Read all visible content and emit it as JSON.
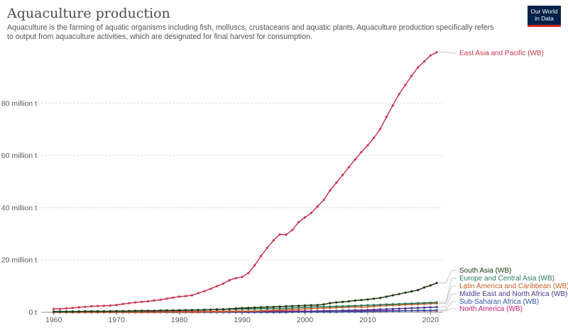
{
  "header": {
    "title": "Aquaculture production",
    "subtitle": "Aquaculture is the farming of aquatic organisms including fish, molluscs, crustaceans and aquatic plants. Aquaculture production specifically refers to output from aquaculture activities, which are designated for final harvest for consumption.",
    "logo_line1": "Our World",
    "logo_line2": "in Data"
  },
  "colors": {
    "east_asia": "#c8384e",
    "south_asia": "#213a12",
    "europe": "#2b7a60",
    "latin_america": "#c95f24",
    "mena": "#4a3a8e",
    "ssa": "#3256a8",
    "north_america": "#c5186f"
  },
  "chart_data": {
    "type": "line",
    "title": "Aquaculture production",
    "xlabel": "",
    "ylabel": "",
    "xlim": [
      1958,
      2022
    ],
    "ylim": [
      0,
      100
    ],
    "y_unit_label": "million t",
    "y_ticks": [
      {
        "value": 0,
        "label": "0 t"
      },
      {
        "value": 20,
        "label": "20 million t"
      },
      {
        "value": 40,
        "label": "40 million t"
      },
      {
        "value": 60,
        "label": "60 million t"
      },
      {
        "value": 80,
        "label": "80 million t"
      }
    ],
    "x_ticks": [
      1960,
      1970,
      1980,
      1990,
      2000,
      2010,
      2020
    ],
    "grid": true,
    "legend": "right, labels at line ends",
    "x": [
      1960,
      1961,
      1962,
      1963,
      1964,
      1965,
      1966,
      1967,
      1968,
      1969,
      1970,
      1971,
      1972,
      1973,
      1974,
      1975,
      1976,
      1977,
      1978,
      1979,
      1980,
      1981,
      1982,
      1983,
      1984,
      1985,
      1986,
      1987,
      1988,
      1989,
      1990,
      1991,
      1992,
      1993,
      1994,
      1995,
      1996,
      1997,
      1998,
      1999,
      2000,
      2001,
      2002,
      2003,
      2004,
      2005,
      2006,
      2007,
      2008,
      2009,
      2010,
      2011,
      2012,
      2013,
      2014,
      2015,
      2016,
      2017,
      2018,
      2019,
      2020,
      2021
    ],
    "series": [
      {
        "name": "East Asia and Pacific (WB)",
        "color_key": "east_asia",
        "values": [
          1.3,
          1.3,
          1.5,
          1.7,
          1.9,
          2.1,
          2.3,
          2.4,
          2.5,
          2.6,
          2.8,
          3.2,
          3.5,
          3.8,
          4.0,
          4.2,
          4.5,
          4.8,
          5.2,
          5.6,
          6.0,
          6.2,
          6.5,
          7.3,
          8.1,
          9.0,
          10.0,
          11.0,
          12.3,
          13.1,
          13.5,
          15.0,
          18.0,
          21.5,
          24.7,
          27.5,
          29.8,
          29.7,
          31.5,
          34.5,
          36.3,
          38.0,
          40.5,
          43.0,
          46.6,
          49.6,
          52.5,
          55.5,
          58.5,
          61.3,
          63.9,
          66.8,
          70.2,
          74.8,
          79.2,
          83.5,
          87.0,
          90.5,
          93.7,
          96.0,
          98.3,
          99.5
        ]
      },
      {
        "name": "South Asia (WB)",
        "color_key": "south_asia",
        "values": [
          0.3,
          0.3,
          0.3,
          0.3,
          0.3,
          0.4,
          0.4,
          0.4,
          0.4,
          0.4,
          0.5,
          0.5,
          0.5,
          0.6,
          0.6,
          0.6,
          0.6,
          0.7,
          0.7,
          0.7,
          0.7,
          0.8,
          0.8,
          0.9,
          0.9,
          1.0,
          1.1,
          1.2,
          1.3,
          1.5,
          1.6,
          1.7,
          1.8,
          1.9,
          2.0,
          2.1,
          2.2,
          2.3,
          2.4,
          2.5,
          2.6,
          2.7,
          2.8,
          3.0,
          3.5,
          3.8,
          4.0,
          4.2,
          4.5,
          4.7,
          4.9,
          5.2,
          5.5,
          6.0,
          6.5,
          7.0,
          7.5,
          8.0,
          8.5,
          9.5,
          10.3,
          11.2
        ]
      },
      {
        "name": "Europe and Central Asia (WB)",
        "color_key": "europe",
        "values": [
          0.2,
          0.2,
          0.2,
          0.2,
          0.3,
          0.3,
          0.3,
          0.3,
          0.3,
          0.4,
          0.4,
          0.4,
          0.5,
          0.5,
          0.5,
          0.6,
          0.6,
          0.6,
          0.7,
          0.7,
          0.8,
          0.8,
          0.9,
          0.9,
          1.0,
          1.0,
          1.1,
          1.1,
          1.2,
          1.2,
          1.3,
          1.3,
          1.3,
          1.4,
          1.4,
          1.5,
          1.5,
          1.6,
          1.7,
          1.8,
          1.9,
          2.0,
          2.1,
          2.1,
          2.2,
          2.3,
          2.3,
          2.4,
          2.5,
          2.6,
          2.7,
          2.8,
          2.9,
          3.0,
          3.1,
          3.2,
          3.3,
          3.4,
          3.5,
          3.6,
          3.7,
          3.8
        ]
      },
      {
        "name": "Latin America and Caribbean (WB)",
        "color_key": "latin_america",
        "values": [
          0.0,
          0.0,
          0.0,
          0.0,
          0.0,
          0.0,
          0.0,
          0.0,
          0.0,
          0.0,
          0.0,
          0.0,
          0.0,
          0.0,
          0.0,
          0.0,
          0.0,
          0.0,
          0.1,
          0.1,
          0.1,
          0.1,
          0.1,
          0.1,
          0.2,
          0.2,
          0.2,
          0.3,
          0.3,
          0.4,
          0.4,
          0.5,
          0.5,
          0.6,
          0.7,
          0.8,
          0.9,
          1.0,
          1.1,
          1.2,
          1.3,
          1.4,
          1.5,
          1.6,
          1.7,
          1.8,
          1.9,
          2.0,
          2.1,
          2.0,
          2.1,
          2.3,
          2.5,
          2.6,
          2.7,
          2.8,
          2.9,
          3.0,
          3.1,
          3.2,
          3.3,
          3.4
        ]
      },
      {
        "name": "Middle East and North Africa (WB)",
        "color_key": "mena",
        "values": [
          0.0,
          0.0,
          0.0,
          0.0,
          0.0,
          0.0,
          0.0,
          0.0,
          0.0,
          0.0,
          0.0,
          0.0,
          0.0,
          0.0,
          0.0,
          0.0,
          0.0,
          0.0,
          0.0,
          0.0,
          0.0,
          0.0,
          0.0,
          0.0,
          0.1,
          0.1,
          0.1,
          0.1,
          0.1,
          0.1,
          0.1,
          0.1,
          0.1,
          0.1,
          0.1,
          0.1,
          0.2,
          0.2,
          0.2,
          0.3,
          0.3,
          0.4,
          0.4,
          0.5,
          0.5,
          0.6,
          0.7,
          0.7,
          0.8,
          0.8,
          0.9,
          1.0,
          1.1,
          1.2,
          1.3,
          1.4,
          1.5,
          1.6,
          1.7,
          1.8,
          1.9,
          2.0
        ]
      },
      {
        "name": "Sub-Saharan Africa (WB)",
        "color_key": "ssa",
        "values": [
          0.0,
          0.0,
          0.0,
          0.0,
          0.0,
          0.0,
          0.0,
          0.0,
          0.0,
          0.0,
          0.0,
          0.0,
          0.0,
          0.0,
          0.0,
          0.0,
          0.0,
          0.0,
          0.0,
          0.0,
          0.0,
          0.0,
          0.0,
          0.0,
          0.0,
          0.0,
          0.0,
          0.0,
          0.0,
          0.0,
          0.0,
          0.0,
          0.0,
          0.0,
          0.0,
          0.0,
          0.0,
          0.0,
          0.1,
          0.1,
          0.1,
          0.1,
          0.1,
          0.1,
          0.1,
          0.1,
          0.2,
          0.2,
          0.2,
          0.2,
          0.3,
          0.3,
          0.4,
          0.4,
          0.5,
          0.5,
          0.6,
          0.6,
          0.7,
          0.7,
          0.7,
          0.8
        ]
      },
      {
        "name": "North America (WB)",
        "color_key": "north_america",
        "values": [
          0.2,
          0.2,
          0.2,
          0.2,
          0.2,
          0.2,
          0.2,
          0.2,
          0.2,
          0.2,
          0.3,
          0.3,
          0.3,
          0.3,
          0.3,
          0.3,
          0.3,
          0.3,
          0.3,
          0.3,
          0.3,
          0.3,
          0.3,
          0.3,
          0.3,
          0.3,
          0.4,
          0.4,
          0.4,
          0.4,
          0.4,
          0.4,
          0.4,
          0.4,
          0.4,
          0.4,
          0.5,
          0.5,
          0.5,
          0.5,
          0.5,
          0.5,
          0.5,
          0.6,
          0.6,
          0.6,
          0.6,
          0.6,
          0.6,
          0.6,
          0.6,
          0.6,
          0.6,
          0.6,
          0.6,
          0.6,
          0.6,
          0.6,
          0.6,
          0.6,
          0.6,
          0.6
        ]
      }
    ]
  }
}
